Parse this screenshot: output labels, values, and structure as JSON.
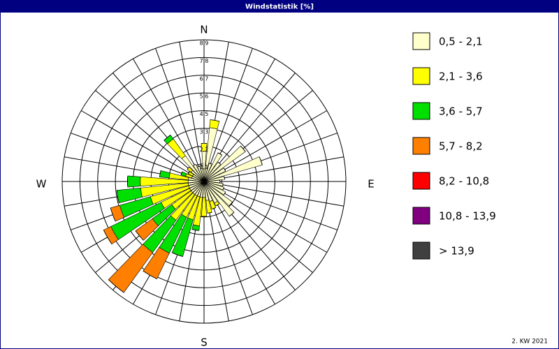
{
  "chart_data": {
    "type": "windrose",
    "title": "Windstatistik [%]",
    "footnote": "2. KW 2021",
    "compass": [
      "N",
      "E",
      "S",
      "W"
    ],
    "categories": [
      null,
      null,
      null,
      null,
      null,
      null,
      null,
      null,
      null,
      null,
      null,
      null,
      null,
      null,
      null,
      null,
      null,
      null,
      null,
      null,
      null,
      null,
      null,
      null,
      null,
      null,
      null,
      null,
      null,
      null,
      null,
      null,
      null,
      null,
      null,
      null
    ],
    "rlim": [
      0,
      8.9
    ],
    "rticks": [
      {
        "value": 1.1125,
        "label": "1,1"
      },
      {
        "value": 2.225,
        "label": "2,2"
      },
      {
        "value": 3.3375,
        "label": "3,3"
      },
      {
        "value": 4.45,
        "label": "4,5"
      },
      {
        "value": 5.5625,
        "label": "5,6"
      },
      {
        "value": 6.675,
        "label": "6,7"
      },
      {
        "value": 7.7875,
        "label": "7,8"
      },
      {
        "value": 8.9,
        "label": "8,9"
      }
    ],
    "legend": "right",
    "series": [
      {
        "name": "0,5 - 2,1",
        "color": "#ffffcc",
        "values": [
          1.9,
          3.4,
          1.2,
          2.0,
          1.5,
          3.2,
          1.5,
          3.8,
          1.3,
          1.0,
          1.2,
          1.3,
          1.5,
          2.2,
          2.7,
          1.5,
          1.3,
          1.2,
          1.0,
          1.0,
          1.0,
          1.0,
          1.0,
          1.0,
          1.0,
          1.0,
          1.0,
          1.0,
          1.0,
          0.8,
          0.8,
          1.0,
          2.0,
          1.2,
          1.0,
          1.0
        ]
      },
      {
        "name": "2,1 - 3,6",
        "color": "#ffff00",
        "values": [
          0.5,
          0.5,
          0,
          0,
          0,
          0,
          0,
          0,
          0,
          0,
          0,
          0,
          0,
          0,
          0,
          0.2,
          0.5,
          0.8,
          1.2,
          1.8,
          1.5,
          1.5,
          2.0,
          1.5,
          2.0,
          2.5,
          3.0,
          3.0,
          1.2,
          0.4,
          0.3,
          0.3,
          1.3,
          0,
          0,
          0
        ]
      },
      {
        "name": "3,6 - 5,7",
        "color": "#00e000",
        "values": [
          0,
          0,
          0,
          0,
          0,
          0,
          0,
          0,
          0,
          0,
          0,
          0,
          0,
          0,
          0,
          0,
          0,
          0,
          0,
          0.3,
          2.4,
          2.5,
          2.5,
          1.5,
          3.5,
          2.0,
          1.5,
          0.8,
          0.6,
          0.3,
          0,
          0,
          0.3,
          0,
          0,
          0
        ]
      },
      {
        "name": "5,7 - 8,2",
        "color": "#ff8000",
        "values": [
          0,
          0,
          0,
          0,
          0,
          0,
          0,
          0,
          0,
          0,
          0,
          0,
          0,
          0,
          0,
          0,
          0,
          0,
          0,
          0,
          0,
          1.8,
          3.1,
          1.3,
          0.5,
          0.6,
          0,
          0,
          0,
          0,
          0,
          0,
          0,
          0,
          0,
          0
        ]
      },
      {
        "name": "8,2 - 10,8",
        "color": "#ff0000",
        "values": [
          0,
          0,
          0,
          0,
          0,
          0,
          0,
          0,
          0,
          0,
          0,
          0,
          0,
          0,
          0,
          0,
          0,
          0,
          0,
          0,
          0,
          0,
          0,
          0,
          0,
          0,
          0,
          0,
          0,
          0,
          0,
          0,
          0,
          0,
          0,
          0
        ]
      },
      {
        "name": "10,8 - 13,9",
        "color": "#800080",
        "values": [
          0,
          0,
          0,
          0,
          0,
          0,
          0,
          0,
          0,
          0,
          0,
          0,
          0,
          0,
          0,
          0,
          0,
          0,
          0,
          0,
          0,
          0,
          0,
          0,
          0,
          0,
          0,
          0,
          0,
          0,
          0,
          0,
          0,
          0,
          0,
          0
        ]
      },
      {
        "name": " > 13,9",
        "color": "#404040",
        "values": [
          0,
          0,
          0,
          0,
          0,
          0,
          0,
          0,
          0,
          0,
          0,
          0,
          0,
          0,
          0,
          0,
          0,
          0,
          0,
          0,
          0,
          0,
          0,
          0,
          0,
          0,
          0,
          0,
          0,
          0,
          0,
          0,
          0,
          0,
          0,
          0
        ]
      }
    ]
  }
}
